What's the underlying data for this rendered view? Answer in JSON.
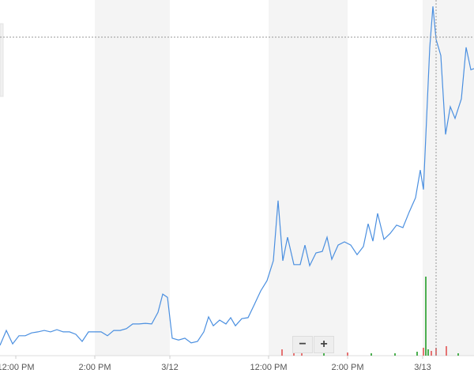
{
  "chart_data": {
    "type": "line",
    "series": [
      {
        "color": "#4a8fe0",
        "x": [
          0,
          4,
          8,
          12,
          16,
          20,
          24,
          28,
          32,
          36,
          40,
          44,
          48,
          52,
          56,
          60,
          64,
          68,
          72,
          76,
          80,
          84,
          88,
          92,
          96,
          100,
          103,
          106,
          109,
          113,
          117,
          121,
          125,
          129,
          132,
          135,
          139,
          143,
          146,
          149,
          153,
          157,
          161,
          165,
          169,
          173,
          176,
          179,
          182,
          186,
          190,
          193,
          196,
          200,
          204,
          207,
          210,
          214,
          218,
          222,
          226,
          230,
          233,
          236,
          239,
          243,
          247,
          251,
          255,
          259,
          263,
          266,
          268,
          270,
          272,
          274,
          276,
          279,
          282,
          285,
          288,
          292,
          295,
          298,
          300
        ],
        "values": [
          2.9,
          7.1,
          3.3,
          5.6,
          5.6,
          6.4,
          6.7,
          7.1,
          6.7,
          7.3,
          6.7,
          6.7,
          6.0,
          4.0,
          6.7,
          6.7,
          6.7,
          5.6,
          7.1,
          7.1,
          7.6,
          8.9,
          8.9,
          9.1,
          8.9,
          12.2,
          17.3,
          16.4,
          4.9,
          4.4,
          4.9,
          3.6,
          4.0,
          6.7,
          10.9,
          8.4,
          10.0,
          8.9,
          10.7,
          8.4,
          10.4,
          10.7,
          14.4,
          18.2,
          21.1,
          26.7,
          43.6,
          26.7,
          33.3,
          25.6,
          25.6,
          31.1,
          25.3,
          28.9,
          29.3,
          33.3,
          27.1,
          31.1,
          32.0,
          31.1,
          28.4,
          30.7,
          37.1,
          32.2,
          40.0,
          32.7,
          34.4,
          36.7,
          36.0,
          40.4,
          44.4,
          52.2,
          46.7,
          66.7,
          86.7,
          98.2,
          88.9,
          84.4,
          62.2,
          70.0,
          66.7,
          72.2,
          86.7,
          80.4,
          80.7
        ]
      }
    ],
    "volume": {
      "x": [
        178.5,
        186,
        191,
        205,
        220,
        235,
        250,
        264,
        268,
        269.5,
        271,
        273,
        276,
        282.5,
        290
      ],
      "values": [
        8,
        4,
        5,
        3,
        4,
        3,
        3,
        5,
        10,
        100,
        8,
        6,
        10,
        12,
        3
      ],
      "colors": [
        "#e57373",
        "#e57373",
        "#e57373",
        "#4caf50",
        "#e57373",
        "#4caf50",
        "#4caf50",
        "#4caf50",
        "#e57373",
        "#4caf50",
        "#4caf50",
        "#e57373",
        "#e57373",
        "#e57373",
        "#4caf50"
      ],
      "ylim": [
        0,
        100
      ]
    },
    "xlim": [
      0,
      300
    ],
    "ylim": [
      0,
      100
    ],
    "xticks": [
      {
        "value": 10,
        "label": "12:00 PM"
      },
      {
        "value": 60,
        "label": "2:00 PM"
      },
      {
        "value": 107.5,
        "label": "3/12"
      },
      {
        "value": 170,
        "label": "12:00 PM"
      },
      {
        "value": 220,
        "label": "2:00 PM"
      },
      {
        "value": 267.5,
        "label": "3/13"
      }
    ]
  },
  "controls": {
    "zoom_out": "−",
    "zoom_in": "+"
  }
}
